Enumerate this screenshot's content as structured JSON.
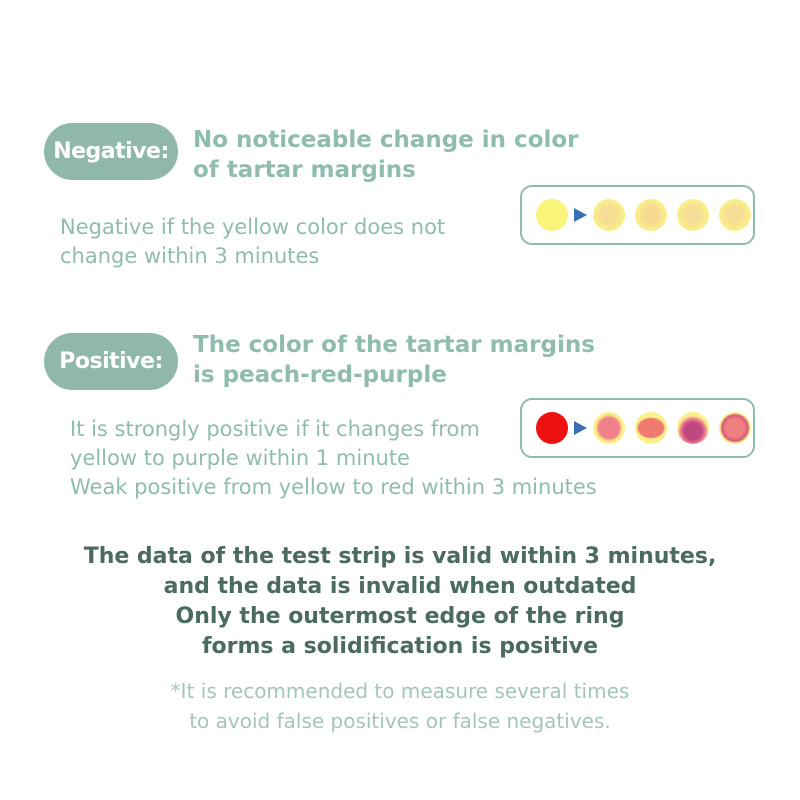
{
  "negative": {
    "label": "Negative:",
    "heading": [
      "No noticeable change in color",
      "of tartar margins"
    ],
    "description": [
      "Negative if the yellow color does not",
      "change within 3 minutes"
    ],
    "swatches": {
      "start": "#fbf47a",
      "results": [
        "#f8e98a",
        "#f8e68a",
        "#f8e88c",
        "#f8e78a"
      ]
    }
  },
  "positive": {
    "label": "Positive:",
    "heading": [
      "The color of the tartar margins",
      "is peach-red-purple"
    ],
    "description": [
      "It is strongly positive if it changes from",
      "yellow to purple within 1 minute",
      "Weak positive from yellow to red within 3 minutes"
    ],
    "swatches": {
      "start": "#ee1111",
      "results": [
        "#f0808a",
        "#f07a70",
        "#d05080",
        "#e86a80"
      ]
    }
  },
  "validity": [
    "The data of the test strip is valid within 3 minutes,",
    "and the data is invalid when outdated",
    "Only the outermost edge of the ring",
    "forms a solidification is positive"
  ],
  "note": [
    "*It is recommended to measure several times",
    "to avoid false positives or false negatives."
  ],
  "colors": {
    "accent": "#8fb8ab",
    "text_light": "#8fbcae",
    "text_dark": "#4b6b5f",
    "arrow": "#3a6fb5"
  }
}
